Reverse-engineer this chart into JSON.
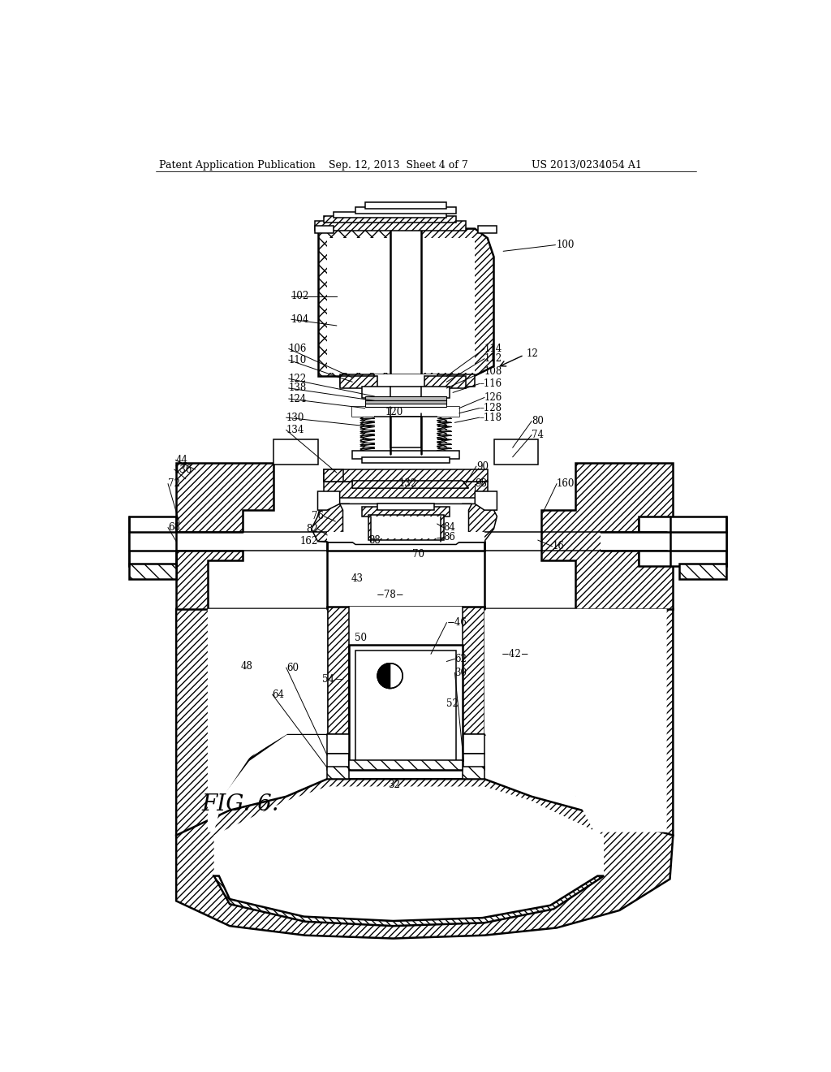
{
  "title_left": "Patent Application Publication",
  "title_mid": "Sep. 12, 2013  Sheet 4 of 7",
  "title_right": "US 2013/0234054 A1",
  "fig_label": "FIG. 6.",
  "bg_color": "#ffffff"
}
